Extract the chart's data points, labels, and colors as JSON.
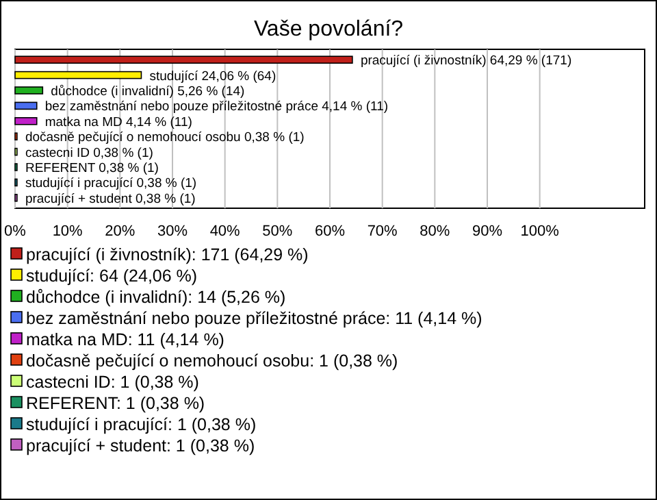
{
  "chart_data": {
    "type": "bar",
    "title": "Vaše povolání?",
    "orientation": "horizontal",
    "categories": [
      "pracující (i živnostník)",
      "studující",
      "důchodce (i invalidní)",
      "bez zaměstnání nebo pouze příležitostné práce",
      "matka na MD",
      "dočasně pečující o nemohoucí osobu",
      "castecni ID",
      "REFERENT",
      "studující i pracující",
      "pracující + student"
    ],
    "values": [
      64.29,
      24.06,
      5.26,
      4.14,
      4.14,
      0.38,
      0.38,
      0.38,
      0.38,
      0.38
    ],
    "value_labels": [
      "64,29 % (171)",
      "24,06 % (64)",
      "5,26 % (14)",
      "4,14 % (11)",
      "4,14 % (11)",
      "0,38 % (1)",
      "0,38 % (1)",
      "0,38 % (1)",
      "0,38 % (1)",
      "0,38 % (1)"
    ],
    "colors": [
      "#c0201a",
      "#ffee00",
      "#20b020",
      "#4a6ef0",
      "#c020c8",
      "#e04010",
      "#ccff77",
      "#1a9060",
      "#1a7a8a",
      "#c060c0"
    ],
    "xlim": [
      0,
      120
    ],
    "xticks": [
      {
        "value": 0,
        "label": "0%"
      },
      {
        "value": 10,
        "label": "10%"
      },
      {
        "value": 20,
        "label": "20%"
      },
      {
        "value": 30,
        "label": "30%"
      },
      {
        "value": 40,
        "label": "40%"
      },
      {
        "value": 50,
        "label": "50%"
      },
      {
        "value": 60,
        "label": "60%"
      },
      {
        "value": 70,
        "label": "70%"
      },
      {
        "value": 80,
        "label": "80%"
      },
      {
        "value": 90,
        "label": "90%"
      },
      {
        "value": 100,
        "label": "100%"
      }
    ],
    "grid": "x",
    "annotations": [
      "pracující (i živnostník): 171 (64,29 %)",
      "studující: 64 (24,06 %)",
      "důchodce (i invalidní): 14 (5,26 %)",
      "bez zaměstnání nebo pouze příležitostné práce: 11 (4,14 %)",
      "matka na MD: 11 (4,14 %)",
      "dočasně pečující o nemohoucí osobu: 1 (0,38 %)",
      "castecni ID: 1 (0,38 %)",
      "REFERENT: 1 (0,38 %)",
      "studující i pracující: 1 (0,38 %)",
      "pracující + student: 1 (0,38 %)"
    ]
  }
}
